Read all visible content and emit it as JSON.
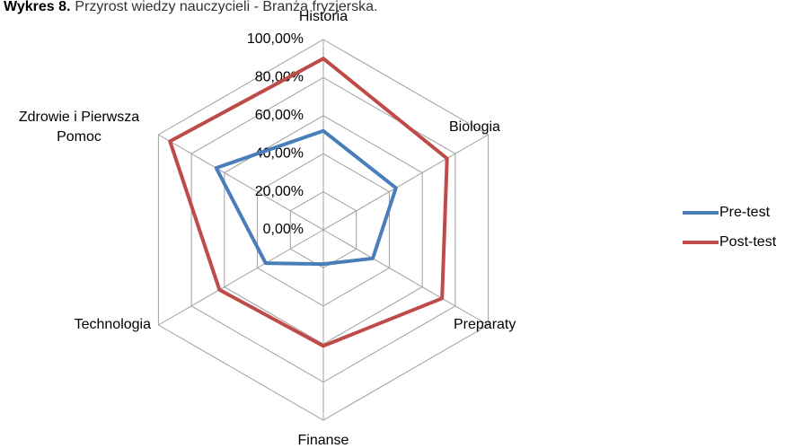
{
  "chart_data": {
    "type": "radar",
    "title_prefix": "Wykres 8.",
    "title": "Przyrost wiedzy nauczycieli - Branża fryzjerska.",
    "categories": [
      "Historia",
      "Biologia",
      "Preparaty",
      "Finanse",
      "Technologia",
      "Zdrowie i Pierwsza Pomoc"
    ],
    "series": [
      {
        "name": "Pre-test",
        "color": "#4a7ebb",
        "values": [
          52,
          44,
          30,
          18,
          35,
          65
        ]
      },
      {
        "name": "Post-test",
        "color": "#be4b48",
        "values": [
          90,
          75,
          72,
          61,
          63,
          93
        ]
      }
    ],
    "ylim": [
      0,
      100
    ],
    "yticks": [
      {
        "value": 0,
        "label": "0,00%"
      },
      {
        "value": 20,
        "label": "20,00%"
      },
      {
        "value": 40,
        "label": "40,00%"
      },
      {
        "value": 60,
        "label": "60,00%"
      },
      {
        "value": 80,
        "label": "80,00%"
      },
      {
        "value": 100,
        "label": "100,00%"
      }
    ],
    "grid": true,
    "legend": "right"
  }
}
